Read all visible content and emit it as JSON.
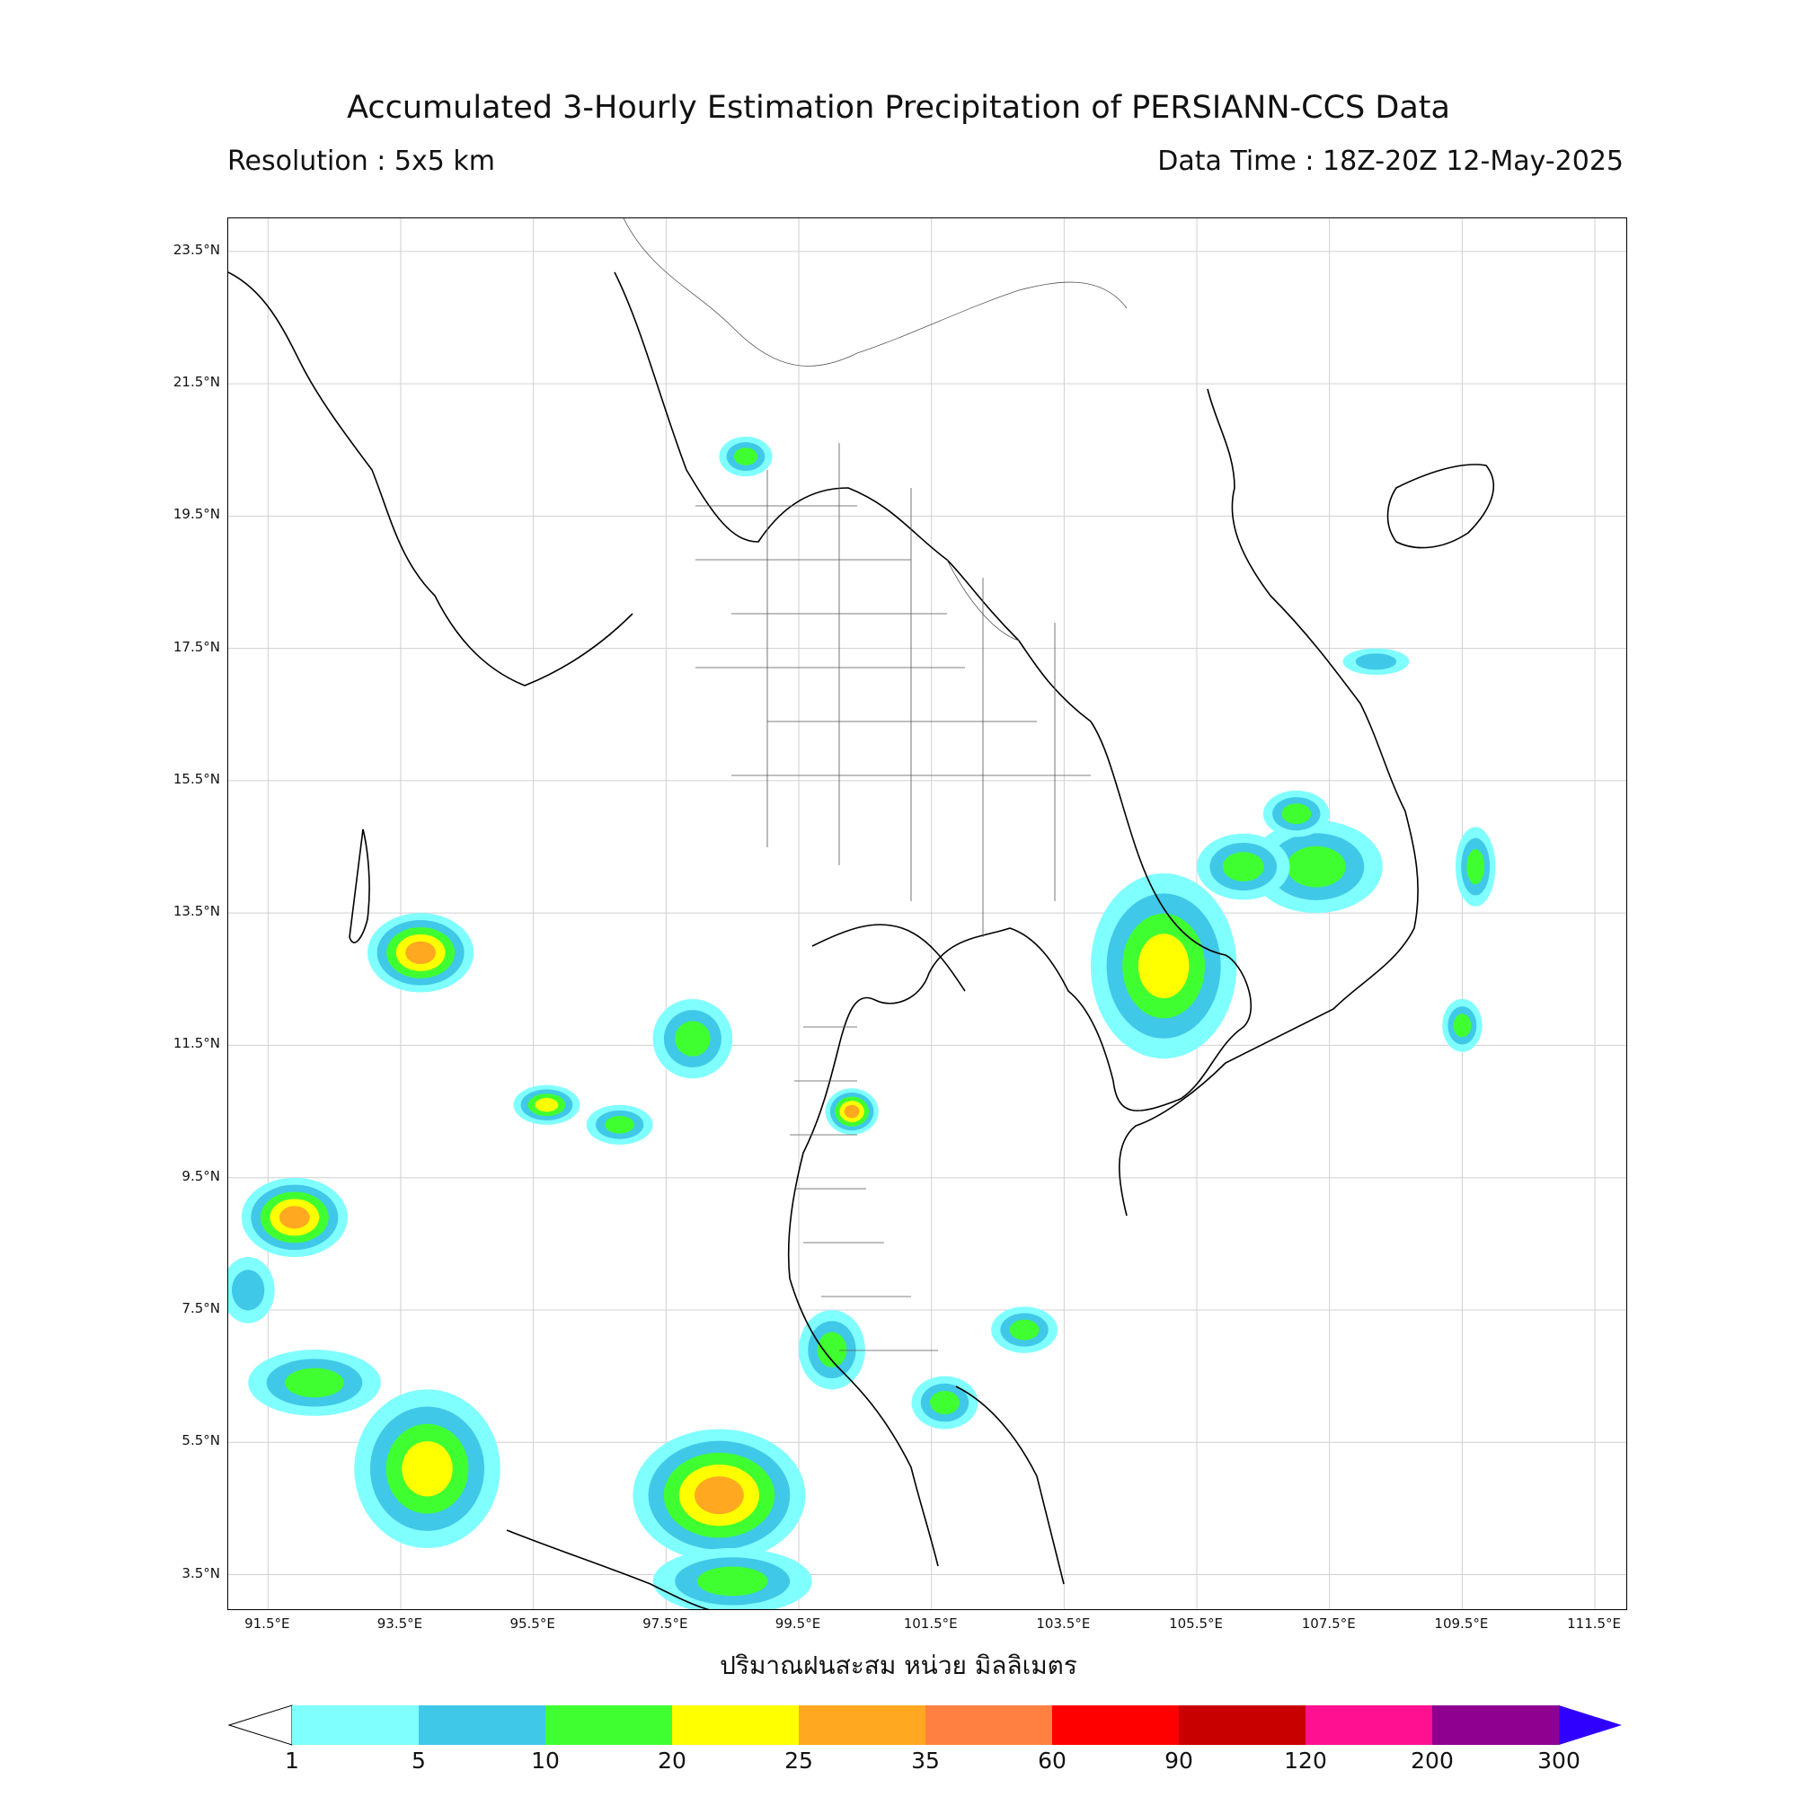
{
  "title": "Accumulated 3-Hourly Estimation Precipitation of PERSIANN-CCS Data",
  "resolution": "Resolution : 5x5 km",
  "data_time": "Data Time : 18Z-20Z 12-May-2025",
  "xlabel": "ปริมาณฝนสะสม หน่วย มิลลิเมตร",
  "map": {
    "lon_range": [
      90.9,
      112.0
    ],
    "lat_range": [
      2.95,
      24.0
    ],
    "lon_ticks": [
      "91.5°E",
      "93.5°E",
      "95.5°E",
      "97.5°E",
      "99.5°E",
      "101.5°E",
      "103.5°E",
      "105.5°E",
      "107.5°E",
      "109.5°E",
      "111.5°E"
    ],
    "lon_values": [
      91.5,
      93.5,
      95.5,
      97.5,
      99.5,
      101.5,
      103.5,
      105.5,
      107.5,
      109.5,
      111.5
    ],
    "lat_ticks": [
      "23.5°N",
      "21.5°N",
      "19.5°N",
      "17.5°N",
      "15.5°N",
      "13.5°N",
      "11.5°N",
      "9.5°N",
      "7.5°N",
      "5.5°N",
      "3.5°N"
    ],
    "lat_values": [
      23.5,
      21.5,
      19.5,
      17.5,
      15.5,
      13.5,
      11.5,
      9.5,
      7.5,
      5.5,
      3.5
    ],
    "grid": true
  },
  "colorbar": {
    "levels": [
      "1",
      "5",
      "10",
      "20",
      "25",
      "35",
      "60",
      "90",
      "120",
      "200",
      "300"
    ],
    "colors": [
      "#80ffff",
      "#40c8e8",
      "#40ff30",
      "#ffff00",
      "#ffa820",
      "#ff8040",
      "#ff0000",
      "#c80000",
      "#ff1090",
      "#900090"
    ],
    "extend_max_color": "#3000ff",
    "extend_min_color": "#ffffff"
  },
  "rain_cells": [
    {
      "lon": 105.0,
      "lat": 12.7,
      "rx": 1.1,
      "ry": 1.4,
      "max": "25"
    },
    {
      "lon": 107.3,
      "lat": 14.2,
      "rx": 1.0,
      "ry": 0.7,
      "max": "20"
    },
    {
      "lon": 106.2,
      "lat": 14.2,
      "rx": 0.7,
      "ry": 0.5,
      "max": "20"
    },
    {
      "lon": 107.0,
      "lat": 15.0,
      "rx": 0.5,
      "ry": 0.35,
      "max": "20"
    },
    {
      "lon": 93.8,
      "lat": 12.9,
      "rx": 0.8,
      "ry": 0.6,
      "max": "35"
    },
    {
      "lon": 91.9,
      "lat": 8.9,
      "rx": 0.8,
      "ry": 0.6,
      "max": "35"
    },
    {
      "lon": 93.9,
      "lat": 5.1,
      "rx": 1.1,
      "ry": 1.2,
      "max": "25"
    },
    {
      "lon": 98.3,
      "lat": 4.7,
      "rx": 1.3,
      "ry": 1.0,
      "max": "35"
    },
    {
      "lon": 98.5,
      "lat": 3.4,
      "rx": 1.2,
      "ry": 0.5,
      "max": "20"
    },
    {
      "lon": 92.2,
      "lat": 6.4,
      "rx": 1.0,
      "ry": 0.5,
      "max": "20"
    },
    {
      "lon": 97.9,
      "lat": 11.6,
      "rx": 0.6,
      "ry": 0.6,
      "max": "20"
    },
    {
      "lon": 95.7,
      "lat": 10.6,
      "rx": 0.5,
      "ry": 0.3,
      "max": "25"
    },
    {
      "lon": 96.8,
      "lat": 10.3,
      "rx": 0.5,
      "ry": 0.3,
      "max": "20"
    },
    {
      "lon": 100.3,
      "lat": 10.5,
      "rx": 0.4,
      "ry": 0.35,
      "max": "35"
    },
    {
      "lon": 102.9,
      "lat": 7.2,
      "rx": 0.5,
      "ry": 0.35,
      "max": "20"
    },
    {
      "lon": 100.0,
      "lat": 6.9,
      "rx": 0.5,
      "ry": 0.6,
      "max": "20"
    },
    {
      "lon": 101.7,
      "lat": 6.1,
      "rx": 0.5,
      "ry": 0.4,
      "max": "20"
    },
    {
      "lon": 98.7,
      "lat": 20.4,
      "rx": 0.4,
      "ry": 0.3,
      "max": "20"
    },
    {
      "lon": 109.5,
      "lat": 11.8,
      "rx": 0.3,
      "ry": 0.4,
      "max": "20"
    },
    {
      "lon": 109.7,
      "lat": 14.2,
      "rx": 0.3,
      "ry": 0.6,
      "max": "20"
    },
    {
      "lon": 91.2,
      "lat": 7.8,
      "rx": 0.4,
      "ry": 0.5,
      "max": "10"
    },
    {
      "lon": 108.2,
      "lat": 17.3,
      "rx": 0.5,
      "ry": 0.2,
      "max": "10"
    }
  ]
}
